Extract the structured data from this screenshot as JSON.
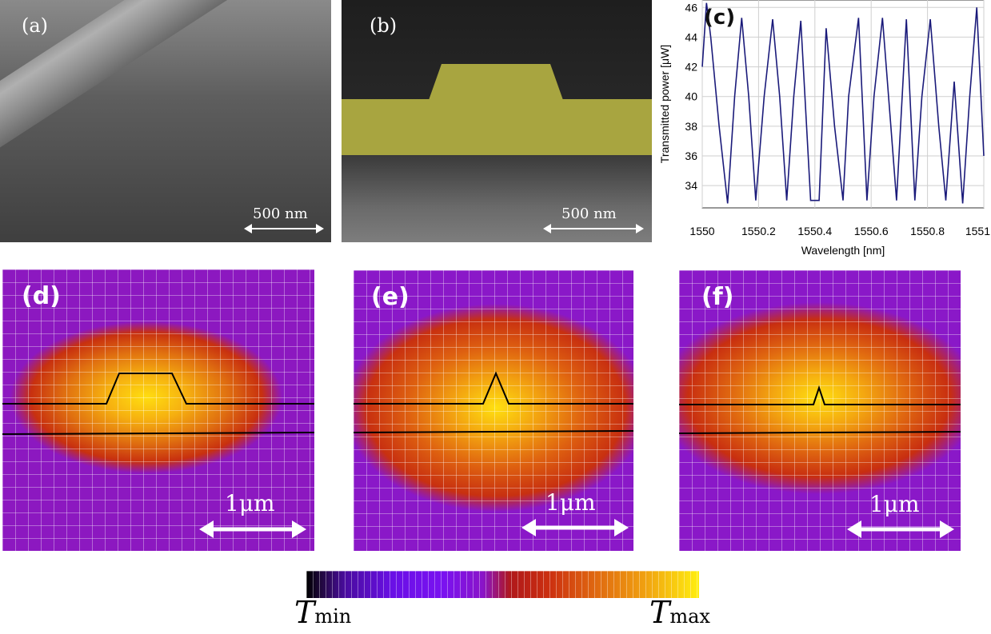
{
  "panels": {
    "a": {
      "label": "(a)",
      "scale": "500 nm"
    },
    "b": {
      "label": "(b)",
      "scale": "500 nm"
    },
    "c": {
      "label": "(c)"
    },
    "d": {
      "label": "(d)",
      "scale": "1μm"
    },
    "e": {
      "label": "(e)",
      "scale": "1μm"
    },
    "f": {
      "label": "(f)",
      "scale": "1μm"
    }
  },
  "colorbar": {
    "min_label": "T",
    "min_sub": "min",
    "max_label": "T",
    "max_sub": "max"
  },
  "chart_data": {
    "type": "line",
    "xlabel": "Wavelength [nm]",
    "ylabel": "Transmitted power [μW]",
    "xlim": [
      1550,
      1551
    ],
    "ylim": [
      32.5,
      46.5
    ],
    "xticks": [
      "1550",
      "1550.2",
      "1550.4",
      "1550.6",
      "1550.8",
      "1551"
    ],
    "yticks": [
      "34",
      "36",
      "38",
      "40",
      "42",
      "44",
      "46"
    ],
    "grid": true,
    "line_color": "#1a1a7a",
    "x": [
      1550.0,
      1550.015,
      1550.03,
      1550.06,
      1550.09,
      1550.115,
      1550.14,
      1550.165,
      1550.19,
      1550.22,
      1550.25,
      1550.275,
      1550.3,
      1550.325,
      1550.35,
      1550.385,
      1550.415,
      1550.44,
      1550.47,
      1550.5,
      1550.52,
      1550.555,
      1550.585,
      1550.61,
      1550.64,
      1550.67,
      1550.69,
      1550.725,
      1550.755,
      1550.78,
      1550.81,
      1550.84,
      1550.865,
      1550.895,
      1550.925,
      1550.95,
      1550.975,
      1551.0
    ],
    "y": [
      42.0,
      46.3,
      44.0,
      38.0,
      32.8,
      40.0,
      45.3,
      40.0,
      33.0,
      40.0,
      45.2,
      40.0,
      33.0,
      40.0,
      45.1,
      33.0,
      33.0,
      44.6,
      38.0,
      33.0,
      40.0,
      45.3,
      33.0,
      40.0,
      45.3,
      38.0,
      33.0,
      45.2,
      33.0,
      40.0,
      45.2,
      38.0,
      33.0,
      41.0,
      32.8,
      40.0,
      46.0,
      36.0
    ]
  }
}
